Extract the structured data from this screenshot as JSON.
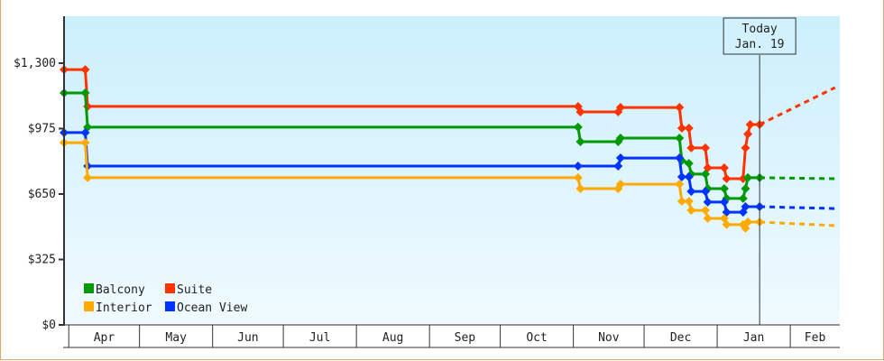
{
  "chart_data": {
    "type": "line",
    "title": "",
    "xlabel": "",
    "ylabel": "",
    "ylim": [
      0,
      1533
    ],
    "xlim": [
      "2023-03-30",
      "2024-02-22"
    ],
    "yticks": [
      {
        "value": 0,
        "label": "$0"
      },
      {
        "value": 325,
        "label": "$325"
      },
      {
        "value": 650,
        "label": "$650"
      },
      {
        "value": 975,
        "label": "$975"
      },
      {
        "value": 1300,
        "label": "$1,300"
      }
    ],
    "months": [
      {
        "label": "Apr",
        "start": "2023-04-01",
        "end": "2023-05-01"
      },
      {
        "label": "May",
        "start": "2023-05-01",
        "end": "2023-06-01"
      },
      {
        "label": "Jun",
        "start": "2023-06-01",
        "end": "2023-07-01"
      },
      {
        "label": "Jul",
        "start": "2023-07-01",
        "end": "2023-08-01"
      },
      {
        "label": "Aug",
        "start": "2023-08-01",
        "end": "2023-09-01"
      },
      {
        "label": "Sep",
        "start": "2023-09-01",
        "end": "2023-10-01"
      },
      {
        "label": "Oct",
        "start": "2023-10-01",
        "end": "2023-11-01"
      },
      {
        "label": "Nov",
        "start": "2023-11-01",
        "end": "2023-12-01"
      },
      {
        "label": "Dec",
        "start": "2023-12-01",
        "end": "2024-01-01"
      },
      {
        "label": "Jan",
        "start": "2024-01-01",
        "end": "2024-02-01"
      },
      {
        "label": "Feb",
        "start": "2024-02-01",
        "end": "2024-02-22"
      }
    ],
    "today": {
      "date": "2024-01-19",
      "line1": "Today",
      "line2": "Jan. 19"
    },
    "grid": false,
    "legend_placement": "bottom-left",
    "series": [
      {
        "name": "Suite",
        "color": "#ff3300",
        "points": [
          [
            "2023-03-30",
            1268
          ],
          [
            "2023-04-08",
            1268
          ],
          [
            "2023-04-09",
            1085
          ],
          [
            "2023-11-03",
            1085
          ],
          [
            "2023-11-04",
            1058
          ],
          [
            "2023-11-20",
            1058
          ],
          [
            "2023-11-21",
            1080
          ],
          [
            "2023-12-16",
            1080
          ],
          [
            "2023-12-17",
            977
          ],
          [
            "2023-12-20",
            977
          ],
          [
            "2023-12-21",
            879
          ],
          [
            "2023-12-27",
            879
          ],
          [
            "2023-12-28",
            780
          ],
          [
            "2024-01-04",
            780
          ],
          [
            "2024-01-05",
            726
          ],
          [
            "2024-01-12",
            726
          ],
          [
            "2024-01-13",
            879
          ],
          [
            "2024-01-14",
            948
          ],
          [
            "2024-01-15",
            995
          ],
          [
            "2024-01-19",
            995
          ]
        ],
        "forecast": [
          [
            "2024-01-19",
            995
          ],
          [
            "2024-02-20",
            1179
          ]
        ]
      },
      {
        "name": "Balcony",
        "color": "#009900",
        "points": [
          [
            "2023-03-30",
            1152
          ],
          [
            "2023-04-08",
            1152
          ],
          [
            "2023-04-09",
            982
          ],
          [
            "2023-11-03",
            982
          ],
          [
            "2023-11-04",
            910
          ],
          [
            "2023-11-20",
            910
          ],
          [
            "2023-11-21",
            928
          ],
          [
            "2023-12-16",
            928
          ],
          [
            "2023-12-17",
            816
          ],
          [
            "2023-12-20",
            802
          ],
          [
            "2023-12-21",
            749
          ],
          [
            "2023-12-27",
            749
          ],
          [
            "2023-12-28",
            677
          ],
          [
            "2024-01-04",
            677
          ],
          [
            "2024-01-05",
            628
          ],
          [
            "2024-01-12",
            628
          ],
          [
            "2024-01-13",
            677
          ],
          [
            "2024-01-14",
            731
          ],
          [
            "2024-01-19",
            731
          ]
        ],
        "forecast": [
          [
            "2024-01-19",
            731
          ],
          [
            "2024-02-20",
            726
          ]
        ]
      },
      {
        "name": "Ocean View",
        "color": "#0033ff",
        "points": [
          [
            "2023-03-30",
            955
          ],
          [
            "2023-04-08",
            955
          ],
          [
            "2023-04-09",
            789
          ],
          [
            "2023-11-03",
            789
          ],
          [
            "2023-11-20",
            789
          ],
          [
            "2023-11-21",
            829
          ],
          [
            "2023-12-16",
            829
          ],
          [
            "2023-12-17",
            735
          ],
          [
            "2023-12-20",
            735
          ],
          [
            "2023-12-21",
            663
          ],
          [
            "2023-12-27",
            663
          ],
          [
            "2023-12-28",
            610
          ],
          [
            "2024-01-04",
            610
          ],
          [
            "2024-01-05",
            560
          ],
          [
            "2024-01-12",
            560
          ],
          [
            "2024-01-13",
            587
          ],
          [
            "2024-01-19",
            587
          ]
        ],
        "forecast": [
          [
            "2024-01-19",
            587
          ],
          [
            "2024-02-20",
            578
          ]
        ]
      },
      {
        "name": "Interior",
        "color": "#ffaa00",
        "points": [
          [
            "2023-03-30",
            905
          ],
          [
            "2023-04-08",
            905
          ],
          [
            "2023-04-09",
            731
          ],
          [
            "2023-11-03",
            731
          ],
          [
            "2023-11-04",
            677
          ],
          [
            "2023-11-20",
            677
          ],
          [
            "2023-11-21",
            699
          ],
          [
            "2023-12-16",
            699
          ],
          [
            "2023-12-17",
            614
          ],
          [
            "2023-12-20",
            614
          ],
          [
            "2023-12-21",
            569
          ],
          [
            "2023-12-27",
            569
          ],
          [
            "2023-12-28",
            529
          ],
          [
            "2024-01-04",
            529
          ],
          [
            "2024-01-05",
            498
          ],
          [
            "2024-01-12",
            498
          ],
          [
            "2024-01-13",
            480
          ],
          [
            "2024-01-14",
            511
          ],
          [
            "2024-01-19",
            511
          ]
        ],
        "forecast": [
          [
            "2024-01-19",
            511
          ],
          [
            "2024-02-20",
            493
          ]
        ]
      }
    ],
    "legend": [
      {
        "name": "Balcony",
        "color": "#009900"
      },
      {
        "name": "Suite",
        "color": "#ff3300"
      },
      {
        "name": "Interior",
        "color": "#ffaa00"
      },
      {
        "name": "Ocean View",
        "color": "#0033ff"
      }
    ]
  }
}
